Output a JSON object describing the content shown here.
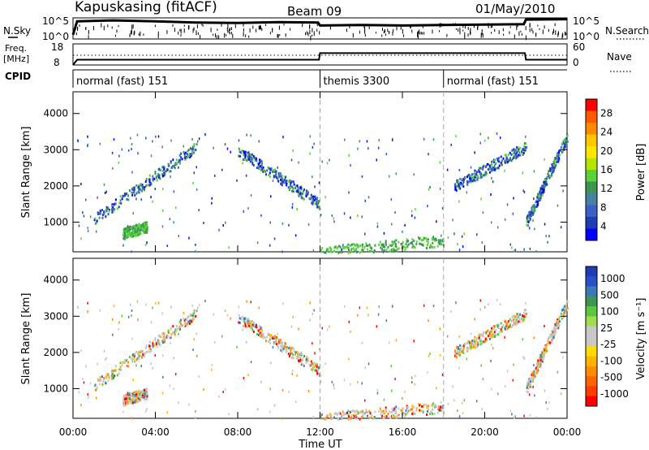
{
  "header": {
    "station": "Kapuskasing (fitACF)",
    "beam": "Beam 09",
    "date": "01/May/2010"
  },
  "panels": {
    "nsky": {
      "label": "N.Sky",
      "ytick_top": "10^5",
      "ytick_bottom": "10^0",
      "right_label": "N.Search",
      "right_tick_top": "10^5",
      "right_tick_bottom": "10^0"
    },
    "freq": {
      "label_line1": "Freq.",
      "label_line2": "[MHz]",
      "ytick_top": "18",
      "ytick_bottom": "8",
      "right_label": "Nave",
      "right_tick_top": "60",
      "right_tick_bottom": "0"
    },
    "cpid": {
      "label": "CPID",
      "segments": [
        {
          "name": "normal (fast) 151",
          "start_h": 0,
          "end_h": 12
        },
        {
          "name": "themis 3300",
          "start_h": 12,
          "end_h": 18
        },
        {
          "name": "normal (fast) 151",
          "start_h": 18,
          "end_h": 24
        }
      ]
    },
    "power": {
      "ylabel": "Slant Range [km]",
      "cbar_label": "Power [dB]",
      "cbar_ticks": [
        "28",
        "24",
        "20",
        "16",
        "12",
        "8",
        "4"
      ],
      "cbar_colors": [
        "#ff0000",
        "#ff5a00",
        "#ff8c00",
        "#ffc800",
        "#ffe600",
        "#b4e600",
        "#5ad23c",
        "#3c9650",
        "#4682a0",
        "#3c5fc8",
        "#1e3cb4",
        "#0000ff"
      ]
    },
    "velocity": {
      "ylabel": "Slant Range [km]",
      "cbar_label": "Velocity [m s⁻¹]",
      "cbar_ticks": [
        "1000",
        "500",
        "100",
        "25",
        "-25",
        "-100",
        "-500",
        "-1000"
      ],
      "cbar_colors": [
        "#1e3cb4",
        "#2850c8",
        "#3c78b4",
        "#3c9650",
        "#5ac83c",
        "#a0dc50",
        "#c8c8c8",
        "#c8c8c8",
        "#ffdc00",
        "#ffb400",
        "#ff8c00",
        "#ff6400",
        "#ff3c00",
        "#ff0000"
      ]
    }
  },
  "chart_data": {
    "type": "heatmap",
    "title": "Kapuskasing (fitACF)   Beam 09   01/May/2010",
    "xlabel": "Time UT",
    "ylabel": "Slant Range [km]",
    "xticks": [
      "00:00",
      "04:00",
      "08:00",
      "12:00",
      "16:00",
      "20:00",
      "00:00"
    ],
    "xlim_hours": [
      0,
      24
    ],
    "yticks": [
      "1000",
      "2000",
      "3000",
      "4000"
    ],
    "ylim_km": [
      180,
      4600
    ],
    "grid": false,
    "mode_boundaries_hours": [
      12,
      18
    ],
    "nsky_trace": {
      "x_hours": [
        0,
        0.2,
        2,
        4,
        6,
        8,
        10,
        11.9,
        12,
        14,
        16,
        18,
        20,
        21.9,
        22,
        24
      ],
      "log10_level": [
        1.0,
        4.2,
        4.4,
        4.2,
        3.9,
        3.8,
        4.0,
        3.9,
        3.2,
        3.3,
        3.2,
        3.3,
        3.4,
        3.5,
        4.6,
        4.7
      ]
    },
    "freq_trace": {
      "x_hours": [
        0,
        0.2,
        11.95,
        12.0,
        21.95,
        22.0,
        24
      ],
      "mhz": [
        8.0,
        10.5,
        10.5,
        13.6,
        13.6,
        10.5,
        10.5
      ]
    },
    "nave_trace": {
      "x_hours": [
        0,
        12,
        12.0,
        22,
        22,
        24
      ],
      "nave": [
        30,
        30,
        30,
        30,
        30,
        30
      ]
    },
    "scatter_regions": [
      {
        "name": "ascending arc",
        "x_hours": [
          1.0,
          6.0
        ],
        "range_km": [
          1100,
          3100
        ],
        "power_db": 4
      },
      {
        "name": "descending arc",
        "x_hours": [
          8.0,
          12.0
        ],
        "range_km": [
          3000,
          1500
        ],
        "power_db": 4
      },
      {
        "name": "early patch",
        "x_hours": [
          2.4,
          3.6
        ],
        "range_km": [
          700,
          900
        ],
        "power_db": 10
      },
      {
        "name": "themis near range",
        "x_hours": [
          12.0,
          18.0
        ],
        "range_km": [
          200,
          500
        ],
        "power_db": 12
      },
      {
        "name": "evening arc",
        "x_hours": [
          18.5,
          22.0
        ],
        "range_km": [
          2000,
          3100
        ],
        "power_db": 4
      },
      {
        "name": "late patch",
        "x_hours": [
          22.0,
          24.0
        ],
        "range_km": [
          1000,
          3400
        ],
        "power_db": 8
      }
    ]
  }
}
